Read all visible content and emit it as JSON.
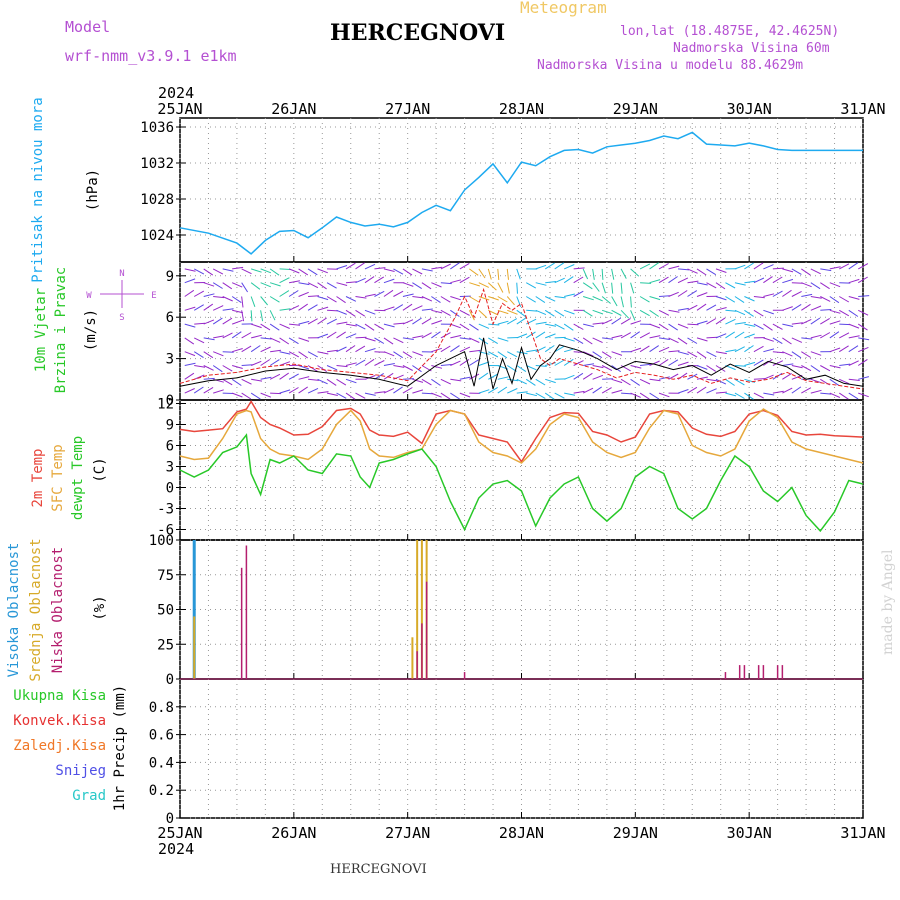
{
  "header": {
    "model_label": "Model",
    "model_name": "wrf-nmm_v3.9.1 e1km",
    "title": "HERCEGNOVI",
    "meteogram": "Meteogram",
    "lonlat": "lon,lat (18.4875E, 42.4625N)",
    "altitude": "Nadmorska Visina 60m",
    "model_altitude": "Nadmorska Visina u modelu 88.4629m",
    "footer_title": "HERCEGNOVI",
    "credit": "made by Angel"
  },
  "colors": {
    "pressure": "#1eaaf0",
    "temp2m": "#e8463c",
    "sfc_temp": "#e6a83c",
    "dewpt": "#28c828",
    "cloud_high": "#2897d7",
    "cloud_mid": "#d7aa28",
    "cloud_low": "#b41e6e",
    "wind_speed": "#000000",
    "gust": "#e61e1e",
    "left_green": "#28c828",
    "left_red": "#e63232",
    "left_orange": "#f07828",
    "left_blue": "#5050e6",
    "left_cyan": "#28c8c8",
    "purple_text": "#b450d2"
  },
  "chart_data": [
    {
      "type": "line",
      "panel": "pressure",
      "label_left": "Pritisak na nivou mora",
      "unit": "(hPa)",
      "xlim": [
        0,
        144
      ],
      "ylim": [
        1021,
        1037
      ],
      "yticks": [
        1024,
        1028,
        1032,
        1036
      ],
      "series": [
        {
          "x": [
            0,
            6,
            12,
            15,
            18,
            21,
            24,
            27,
            30,
            33,
            36,
            39,
            42,
            45,
            48,
            51,
            54,
            57,
            60,
            63,
            66,
            69,
            72,
            75,
            78,
            81,
            84,
            87,
            90,
            93,
            96,
            99,
            102,
            105,
            108,
            111,
            114,
            117,
            120,
            123,
            126,
            129,
            132,
            135,
            138,
            141,
            144
          ],
          "values": [
            1024.8,
            1024.2,
            1023.1,
            1021.9,
            1023.4,
            1024.4,
            1024.5,
            1023.7,
            1024.8,
            1026.0,
            1025.4,
            1025.0,
            1025.2,
            1024.9,
            1025.4,
            1026.5,
            1027.3,
            1026.7,
            1029.0,
            1030.4,
            1031.9,
            1029.8,
            1032.1,
            1031.7,
            1032.7,
            1033.4,
            1033.5,
            1033.1,
            1033.8,
            1034.0,
            1034.2,
            1034.5,
            1035.0,
            1034.7,
            1035.4,
            1034.1,
            1034.0,
            1033.9,
            1034.2,
            1033.9,
            1033.5,
            1033.4,
            1033.4,
            1033.4,
            1033.4,
            1033.4,
            1033.4
          ]
        }
      ]
    },
    {
      "type": "line",
      "panel": "wind",
      "label_left": [
        "10m Vjetar",
        "Brzina i Pravac"
      ],
      "unit": "(m/s)",
      "compass": {
        "n": "N",
        "s": "S",
        "e": "E",
        "w": "W"
      },
      "xlim": [
        0,
        144
      ],
      "ylim": [
        0,
        10
      ],
      "yticks": [
        0,
        3,
        6,
        9
      ],
      "series": [
        {
          "name": "speed",
          "x": [
            0,
            6,
            12,
            18,
            24,
            30,
            36,
            42,
            48,
            54,
            60,
            62,
            64,
            66,
            68,
            70,
            72,
            74,
            76,
            78,
            80,
            84,
            88,
            92,
            96,
            100,
            104,
            108,
            112,
            116,
            120,
            124,
            128,
            132,
            136,
            140,
            144
          ],
          "values": [
            1.0,
            1.4,
            1.6,
            2.1,
            2.3,
            2.0,
            1.8,
            1.5,
            1.0,
            2.5,
            3.5,
            1.0,
            4.5,
            0.8,
            3.0,
            1.2,
            3.8,
            1.5,
            2.5,
            3.0,
            4.0,
            3.6,
            3.0,
            2.2,
            2.8,
            2.6,
            2.2,
            2.5,
            1.8,
            2.6,
            2.0,
            2.8,
            2.4,
            1.5,
            1.8,
            1.2,
            1.0
          ]
        },
        {
          "name": "gust",
          "x": [
            0,
            6,
            12,
            18,
            24,
            30,
            36,
            42,
            48,
            54,
            58,
            60,
            62,
            64,
            66,
            68,
            70,
            72,
            74,
            76,
            78,
            80,
            84,
            88,
            92,
            96,
            100,
            104,
            108,
            112,
            116,
            120,
            124,
            128,
            132,
            136,
            140,
            144
          ],
          "values": [
            1.2,
            1.8,
            2.0,
            2.4,
            2.6,
            2.2,
            2.0,
            1.8,
            1.4,
            3.5,
            6.0,
            7.5,
            6.0,
            8.0,
            5.5,
            7.0,
            6.5,
            7.0,
            5.0,
            3.0,
            2.5,
            3.0,
            2.6,
            2.2,
            1.6,
            2.0,
            1.8,
            1.5,
            1.8,
            1.2,
            1.6,
            1.3,
            1.5,
            2.0,
            1.4,
            1.2,
            1.0,
            0.8
          ]
        }
      ]
    },
    {
      "type": "line",
      "panel": "temperature",
      "label_left": [
        "2m Temp",
        "SFC Temp",
        "dewpt Temp"
      ],
      "unit": "(C)",
      "xlim": [
        0,
        144
      ],
      "ylim": [
        -7.5,
        12.5
      ],
      "yticks": [
        -6,
        -3,
        0,
        3,
        6,
        9,
        12
      ],
      "series": [
        {
          "name": "2m Temp",
          "x": [
            0,
            3,
            6,
            9,
            12,
            14,
            15,
            17,
            19,
            21,
            24,
            27,
            30,
            33,
            36,
            38,
            40,
            42,
            45,
            48,
            51,
            54,
            57,
            60,
            63,
            66,
            69,
            72,
            75,
            78,
            81,
            84,
            87,
            90,
            93,
            96,
            99,
            102,
            105,
            108,
            111,
            114,
            117,
            120,
            123,
            126,
            129,
            132,
            135,
            138,
            141,
            144
          ],
          "values": [
            8.3,
            8.0,
            8.2,
            8.4,
            10.8,
            11.2,
            12.3,
            10.0,
            9.0,
            8.5,
            7.5,
            7.6,
            8.7,
            11.0,
            11.3,
            10.5,
            8.2,
            7.5,
            7.3,
            7.9,
            6.3,
            10.5,
            11.0,
            10.5,
            7.5,
            7.0,
            6.5,
            3.7,
            7.0,
            10.0,
            10.7,
            10.6,
            8.0,
            7.5,
            6.5,
            7.2,
            10.5,
            11.0,
            10.8,
            8.5,
            7.6,
            7.3,
            8.0,
            10.5,
            11.0,
            10.3,
            8.0,
            7.5,
            7.6,
            7.4,
            7.3,
            7.2
          ]
        },
        {
          "name": "SFC Temp",
          "x": [
            0,
            3,
            6,
            9,
            12,
            14,
            15,
            17,
            19,
            21,
            24,
            27,
            30,
            33,
            36,
            38,
            40,
            42,
            45,
            48,
            51,
            54,
            57,
            60,
            63,
            66,
            69,
            72,
            75,
            78,
            81,
            84,
            87,
            90,
            93,
            96,
            99,
            102,
            105,
            108,
            111,
            114,
            117,
            120,
            123,
            126,
            129,
            132,
            135,
            138,
            141,
            144
          ],
          "values": [
            4.5,
            4.0,
            4.2,
            7.0,
            10.5,
            11.0,
            10.8,
            7.0,
            5.5,
            4.8,
            4.5,
            4.0,
            5.5,
            9.0,
            11.0,
            9.5,
            5.5,
            4.5,
            4.3,
            5.0,
            5.5,
            9.0,
            11.0,
            10.5,
            6.5,
            5.0,
            4.5,
            3.5,
            5.5,
            9.0,
            10.5,
            10.0,
            6.5,
            5.0,
            4.3,
            5.0,
            8.5,
            11.0,
            10.5,
            6.0,
            5.0,
            4.5,
            5.5,
            9.5,
            11.2,
            10.0,
            6.5,
            5.5,
            5.0,
            4.5,
            4.0,
            3.5
          ]
        },
        {
          "name": "dewpt Temp",
          "x": [
            0,
            3,
            6,
            9,
            12,
            14,
            15,
            17,
            19,
            21,
            24,
            27,
            30,
            33,
            36,
            38,
            40,
            42,
            45,
            48,
            51,
            54,
            57,
            60,
            63,
            66,
            69,
            72,
            75,
            78,
            81,
            84,
            87,
            90,
            93,
            96,
            99,
            102,
            105,
            108,
            111,
            114,
            117,
            120,
            123,
            126,
            129,
            132,
            135,
            138,
            141,
            144
          ],
          "values": [
            2.5,
            1.5,
            2.5,
            5.0,
            5.8,
            7.5,
            2.0,
            -1.0,
            4.0,
            3.5,
            4.5,
            2.5,
            2.0,
            4.8,
            4.5,
            1.5,
            0.0,
            3.5,
            4.0,
            4.8,
            5.5,
            3.0,
            -2.0,
            -6.0,
            -1.5,
            0.5,
            1.0,
            -0.5,
            -5.5,
            -1.5,
            0.5,
            1.5,
            -3.0,
            -4.8,
            -3.0,
            1.5,
            3.0,
            2.0,
            -3.0,
            -4.5,
            -3.0,
            1.0,
            4.5,
            3.0,
            -0.5,
            -2.0,
            0.0,
            -4.0,
            -6.2,
            -3.5,
            1.0,
            0.5
          ]
        }
      ]
    },
    {
      "type": "bar",
      "panel": "cloud",
      "label_left": [
        "Visoka Oblacnost",
        "Srednja Oblacnost",
        "Niska Oblacnost"
      ],
      "unit": "(%)",
      "xlim": [
        0,
        144
      ],
      "ylim": [
        0,
        100
      ],
      "yticks": [
        0,
        25,
        50,
        75,
        100
      ],
      "series": [
        {
          "name": "Visoka Oblacnost",
          "x": [
            3
          ],
          "values": [
            100
          ]
        },
        {
          "name": "Srednja Oblacnost",
          "x": [
            3,
            49,
            50,
            51,
            52
          ],
          "values": [
            45,
            30,
            100,
            100,
            100
          ]
        },
        {
          "name": "Niska Oblacnost",
          "x": [
            13,
            14,
            50,
            51,
            52,
            60,
            115,
            118,
            119,
            122,
            123,
            126,
            127
          ],
          "values": [
            80,
            96,
            20,
            40,
            70,
            5,
            5,
            10,
            10,
            10,
            10,
            10,
            10
          ]
        }
      ]
    },
    {
      "type": "bar",
      "panel": "precip",
      "label_left": [
        "Ukupna Kisa",
        "Konvek.Kisa",
        "Zaledj.Kisa",
        "Snijeg",
        "Grad"
      ],
      "unit": "1hr Precip (mm)",
      "xlim": [
        0,
        144
      ],
      "ylim": [
        0,
        1.0
      ],
      "yticks": [
        0,
        0.2,
        0.4,
        0.6,
        0.8
      ],
      "series": [
        {
          "name": "Ukupna Kisa",
          "x": [],
          "values": []
        }
      ]
    }
  ],
  "axis": {
    "top_year": "2024",
    "bottom_year": "2024",
    "day_ticks": [
      {
        "x": 0,
        "label": "25JAN"
      },
      {
        "x": 24,
        "label": "26JAN"
      },
      {
        "x": 48,
        "label": "27JAN"
      },
      {
        "x": 72,
        "label": "28JAN"
      },
      {
        "x": 96,
        "label": "29JAN"
      },
      {
        "x": 120,
        "label": "30JAN"
      },
      {
        "x": 144,
        "label": "31JAN"
      }
    ]
  }
}
